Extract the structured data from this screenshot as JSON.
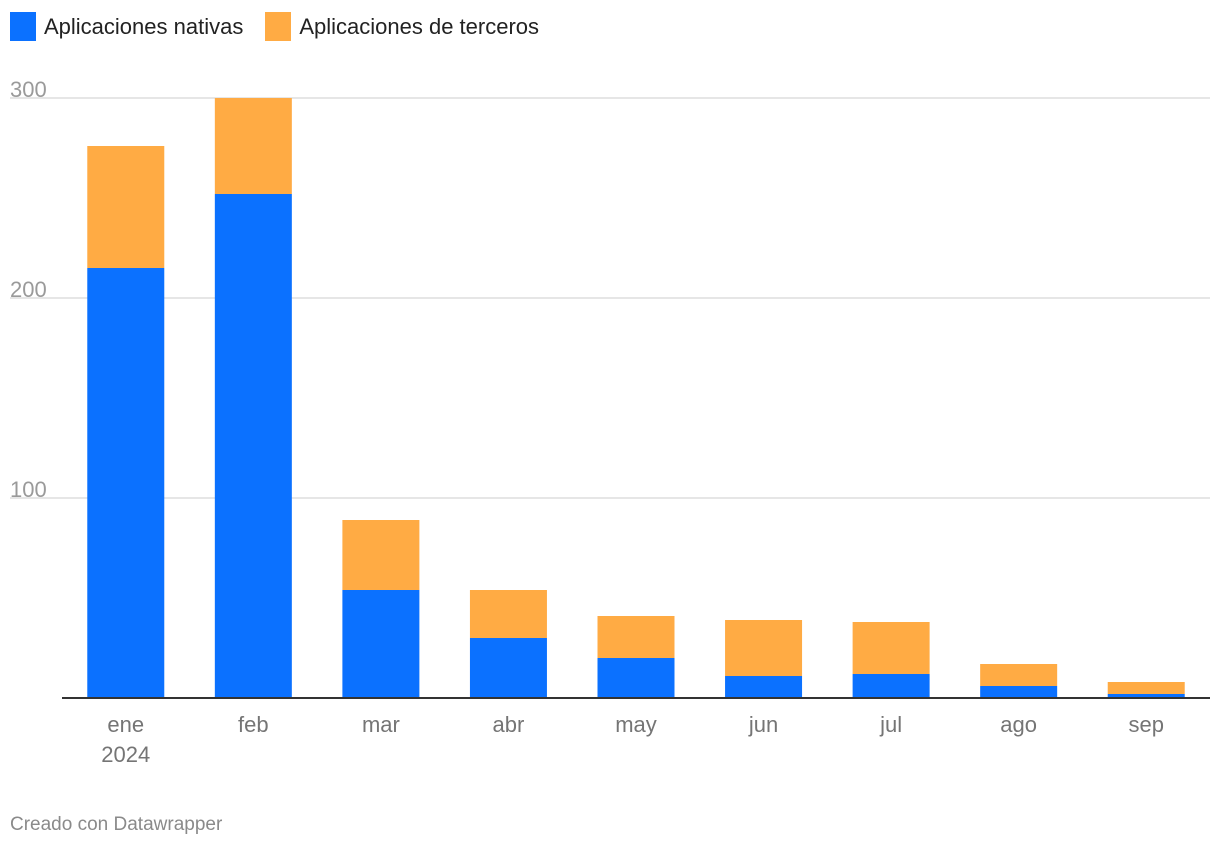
{
  "chart_data": {
    "type": "bar",
    "stacked": true,
    "categories": [
      "ene 2024",
      "feb",
      "mar",
      "abr",
      "may",
      "jun",
      "jul",
      "ago",
      "sep"
    ],
    "category_lines": [
      [
        "ene",
        "2024"
      ],
      [
        "feb"
      ],
      [
        "mar"
      ],
      [
        "abr"
      ],
      [
        "may"
      ],
      [
        "jun"
      ],
      [
        "jul"
      ],
      [
        "ago"
      ],
      [
        "sep"
      ]
    ],
    "series": [
      {
        "name": "Aplicaciones nativas",
        "color": "#0b71ff",
        "values": [
          215,
          252,
          54,
          30,
          20,
          11,
          12,
          6,
          2
        ]
      },
      {
        "name": "Aplicaciones de terceros",
        "color": "#ffab44",
        "values": [
          61,
          48,
          35,
          24,
          21,
          28,
          26,
          11,
          6
        ]
      }
    ],
    "ylim": [
      0,
      300
    ],
    "yticks": [
      100,
      200,
      300
    ],
    "grid": true,
    "legend": "top-left",
    "xlabel": "",
    "ylabel": ""
  },
  "footer": {
    "credit": "Creado con Datawrapper"
  }
}
